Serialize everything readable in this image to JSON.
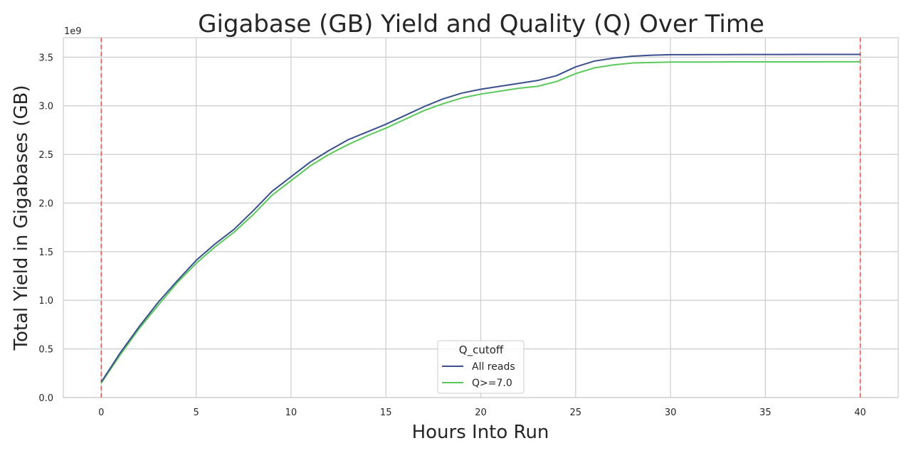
{
  "chart_data": {
    "type": "line",
    "title": "Gigabase (GB) Yield and Quality (Q) Over Time",
    "xlabel": "Hours Into Run",
    "ylabel": "Total Yield in Gigabases (GB)",
    "y_offset_label": "1e9",
    "xlim": [
      -2,
      42
    ],
    "ylim": [
      0,
      3700000000.0
    ],
    "xticks": [
      0,
      5,
      10,
      15,
      20,
      25,
      30,
      35,
      40
    ],
    "xtick_labels": [
      "0",
      "5",
      "10",
      "15",
      "20",
      "25",
      "30",
      "35",
      "40"
    ],
    "yticks": [
      0,
      500000000.0,
      1000000000.0,
      1500000000.0,
      2000000000.0,
      2500000000.0,
      3000000000.0,
      3500000000.0
    ],
    "ytick_labels": [
      "0.0",
      "0.5",
      "1.0",
      "1.5",
      "2.0",
      "2.5",
      "3.0",
      "3.5"
    ],
    "grid": true,
    "legend": {
      "title": "Q_cutoff",
      "placement": "bottom-center"
    },
    "vlines": [
      {
        "x": 0,
        "color": "#e05a5a",
        "style": "dashed"
      },
      {
        "x": 40,
        "color": "#e05a5a",
        "style": "dashed"
      }
    ],
    "x": [
      0,
      1,
      2,
      3,
      4,
      5,
      6,
      7,
      8,
      9,
      10,
      11,
      12,
      13,
      14,
      15,
      16,
      17,
      18,
      19,
      20,
      21,
      22,
      23,
      24,
      25,
      26,
      27,
      28,
      29,
      30,
      31,
      32,
      33,
      34,
      35,
      36,
      37,
      38,
      39,
      40
    ],
    "series": [
      {
        "name": "All reads",
        "color": "#3b4f8c",
        "values": [
          160000000.0,
          460000000.0,
          730000000.0,
          980000000.0,
          1200000000.0,
          1410000000.0,
          1580000000.0,
          1730000000.0,
          1920000000.0,
          2120000000.0,
          2270000000.0,
          2420000000.0,
          2540000000.0,
          2650000000.0,
          2730000000.0,
          2810000000.0,
          2900000000.0,
          2990000000.0,
          3070000000.0,
          3130000000.0,
          3170000000.0,
          3200000000.0,
          3230000000.0,
          3260000000.0,
          3310000000.0,
          3400000000.0,
          3460000000.0,
          3490000000.0,
          3510000000.0,
          3520000000.0,
          3525000000.0,
          3525000000.0,
          3526000000.0,
          3526000000.0,
          3527000000.0,
          3527000000.0,
          3527000000.0,
          3528000000.0,
          3528000000.0,
          3528000000.0,
          3528000000.0
        ]
      },
      {
        "name": "Q>=7.0",
        "color": "#5ac85a",
        "values": [
          150000000.0,
          440000000.0,
          710000000.0,
          950000000.0,
          1180000000.0,
          1380000000.0,
          1550000000.0,
          1700000000.0,
          1880000000.0,
          2080000000.0,
          2230000000.0,
          2380000000.0,
          2500000000.0,
          2600000000.0,
          2690000000.0,
          2770000000.0,
          2860000000.0,
          2950000000.0,
          3020000000.0,
          3080000000.0,
          3120000000.0,
          3150000000.0,
          3180000000.0,
          3200000000.0,
          3250000000.0,
          3330000000.0,
          3390000000.0,
          3420000000.0,
          3440000000.0,
          3445000000.0,
          3450000000.0,
          3450000000.0,
          3450000000.0,
          3451000000.0,
          3451000000.0,
          3451000000.0,
          3451000000.0,
          3451000000.0,
          3452000000.0,
          3452000000.0,
          3452000000.0
        ]
      }
    ]
  }
}
